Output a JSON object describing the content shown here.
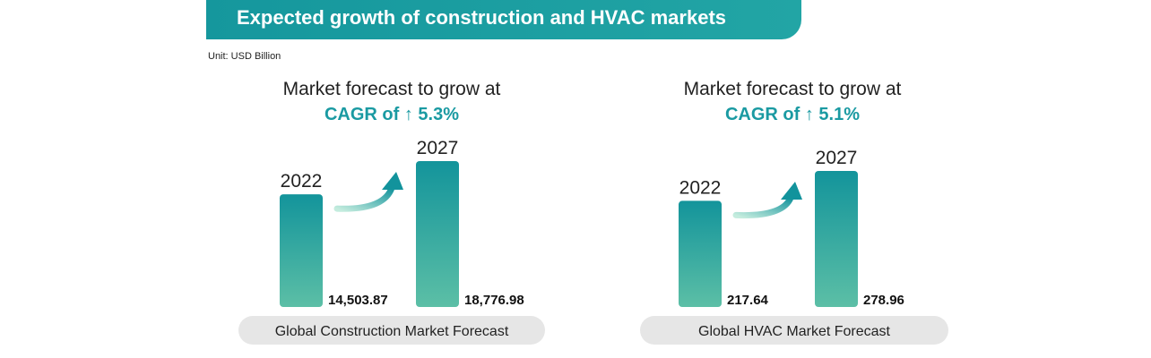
{
  "header": {
    "title": "Expected growth of construction and HVAC markets",
    "unit": "Unit: USD Billion"
  },
  "colors": {
    "accent": "#1a9aa2",
    "bar_top": "#13949b",
    "bar_bottom": "#5cbfa6",
    "caption_bg": "#e6e6e6"
  },
  "chart_data": [
    {
      "type": "bar",
      "headline": "Market forecast to grow at",
      "cagr_label": "CAGR of ↑ 5.3%",
      "categories": [
        "2022",
        "2027"
      ],
      "values": [
        14503.87,
        18776.98
      ],
      "value_labels": [
        "14,503.87",
        "18,776.98"
      ],
      "caption": "Global Construction Market Forecast"
    },
    {
      "type": "bar",
      "headline": "Market forecast to grow at",
      "cagr_label": "CAGR of ↑ 5.1%",
      "categories": [
        "2022",
        "2027"
      ],
      "values": [
        217.64,
        278.96
      ],
      "value_labels": [
        "217.64",
        "278.96"
      ],
      "caption": "Global HVAC Market Forecast"
    }
  ]
}
